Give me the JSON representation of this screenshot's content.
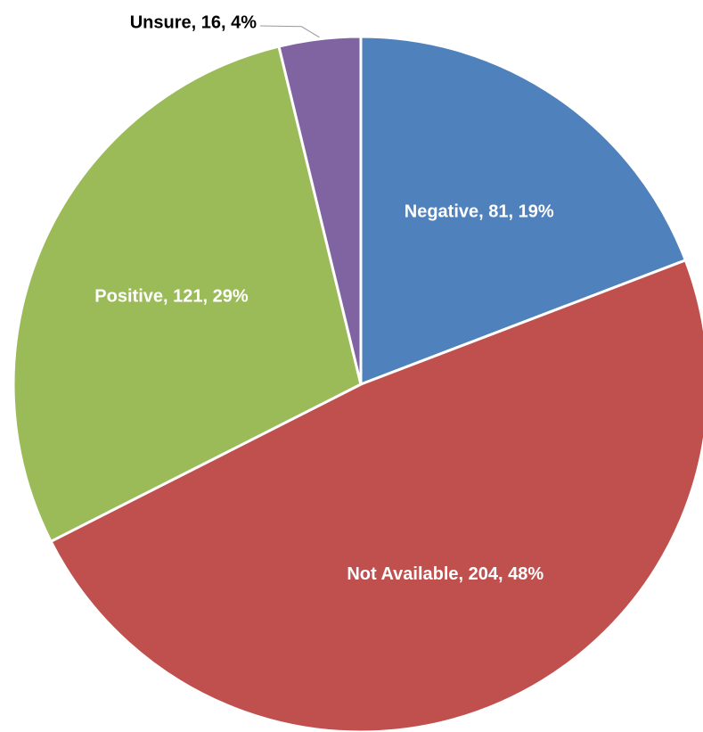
{
  "chart_data": {
    "type": "pie",
    "categories": [
      "Negative",
      "Not Available",
      "Positive",
      "Unsure"
    ],
    "values": [
      81,
      204,
      121,
      16
    ],
    "value_labels": [
      "Negative, 81, 19%",
      "Not Available, 204, 48%",
      "Positive, 121, 29%",
      "Unsure, 16, 4%"
    ],
    "colors": [
      "#4f81bd",
      "#c0504d",
      "#9bbb59",
      "#8064a2"
    ]
  }
}
